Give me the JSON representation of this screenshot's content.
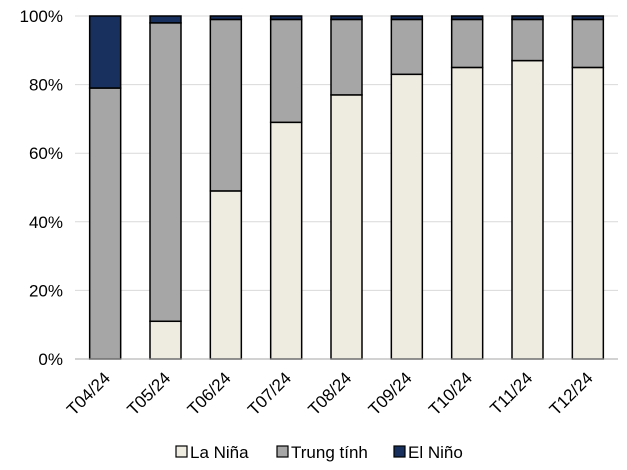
{
  "chart_data": {
    "type": "bar",
    "stacked": true,
    "categories": [
      "T04/24",
      "T05/24",
      "T06/24",
      "T07/24",
      "T08/24",
      "T09/24",
      "T10/24",
      "T11/24",
      "T12/24"
    ],
    "series": [
      {
        "name": "La Niña",
        "color": "#eeece1",
        "values": [
          0,
          11,
          49,
          69,
          77,
          83,
          85,
          87,
          85
        ]
      },
      {
        "name": "Trung tính",
        "color": "#a6a6a6",
        "values": [
          79,
          87,
          50,
          30,
          22,
          16,
          14,
          12,
          14
        ]
      },
      {
        "name": "El Niño",
        "color": "#17305e",
        "values": [
          21,
          2,
          1,
          1,
          1,
          1,
          1,
          1,
          1
        ]
      }
    ],
    "y_ticks": [
      "0%",
      "20%",
      "40%",
      "60%",
      "80%",
      "100%"
    ],
    "ylim": [
      0,
      100
    ],
    "grid": true,
    "legend_position": "bottom"
  }
}
